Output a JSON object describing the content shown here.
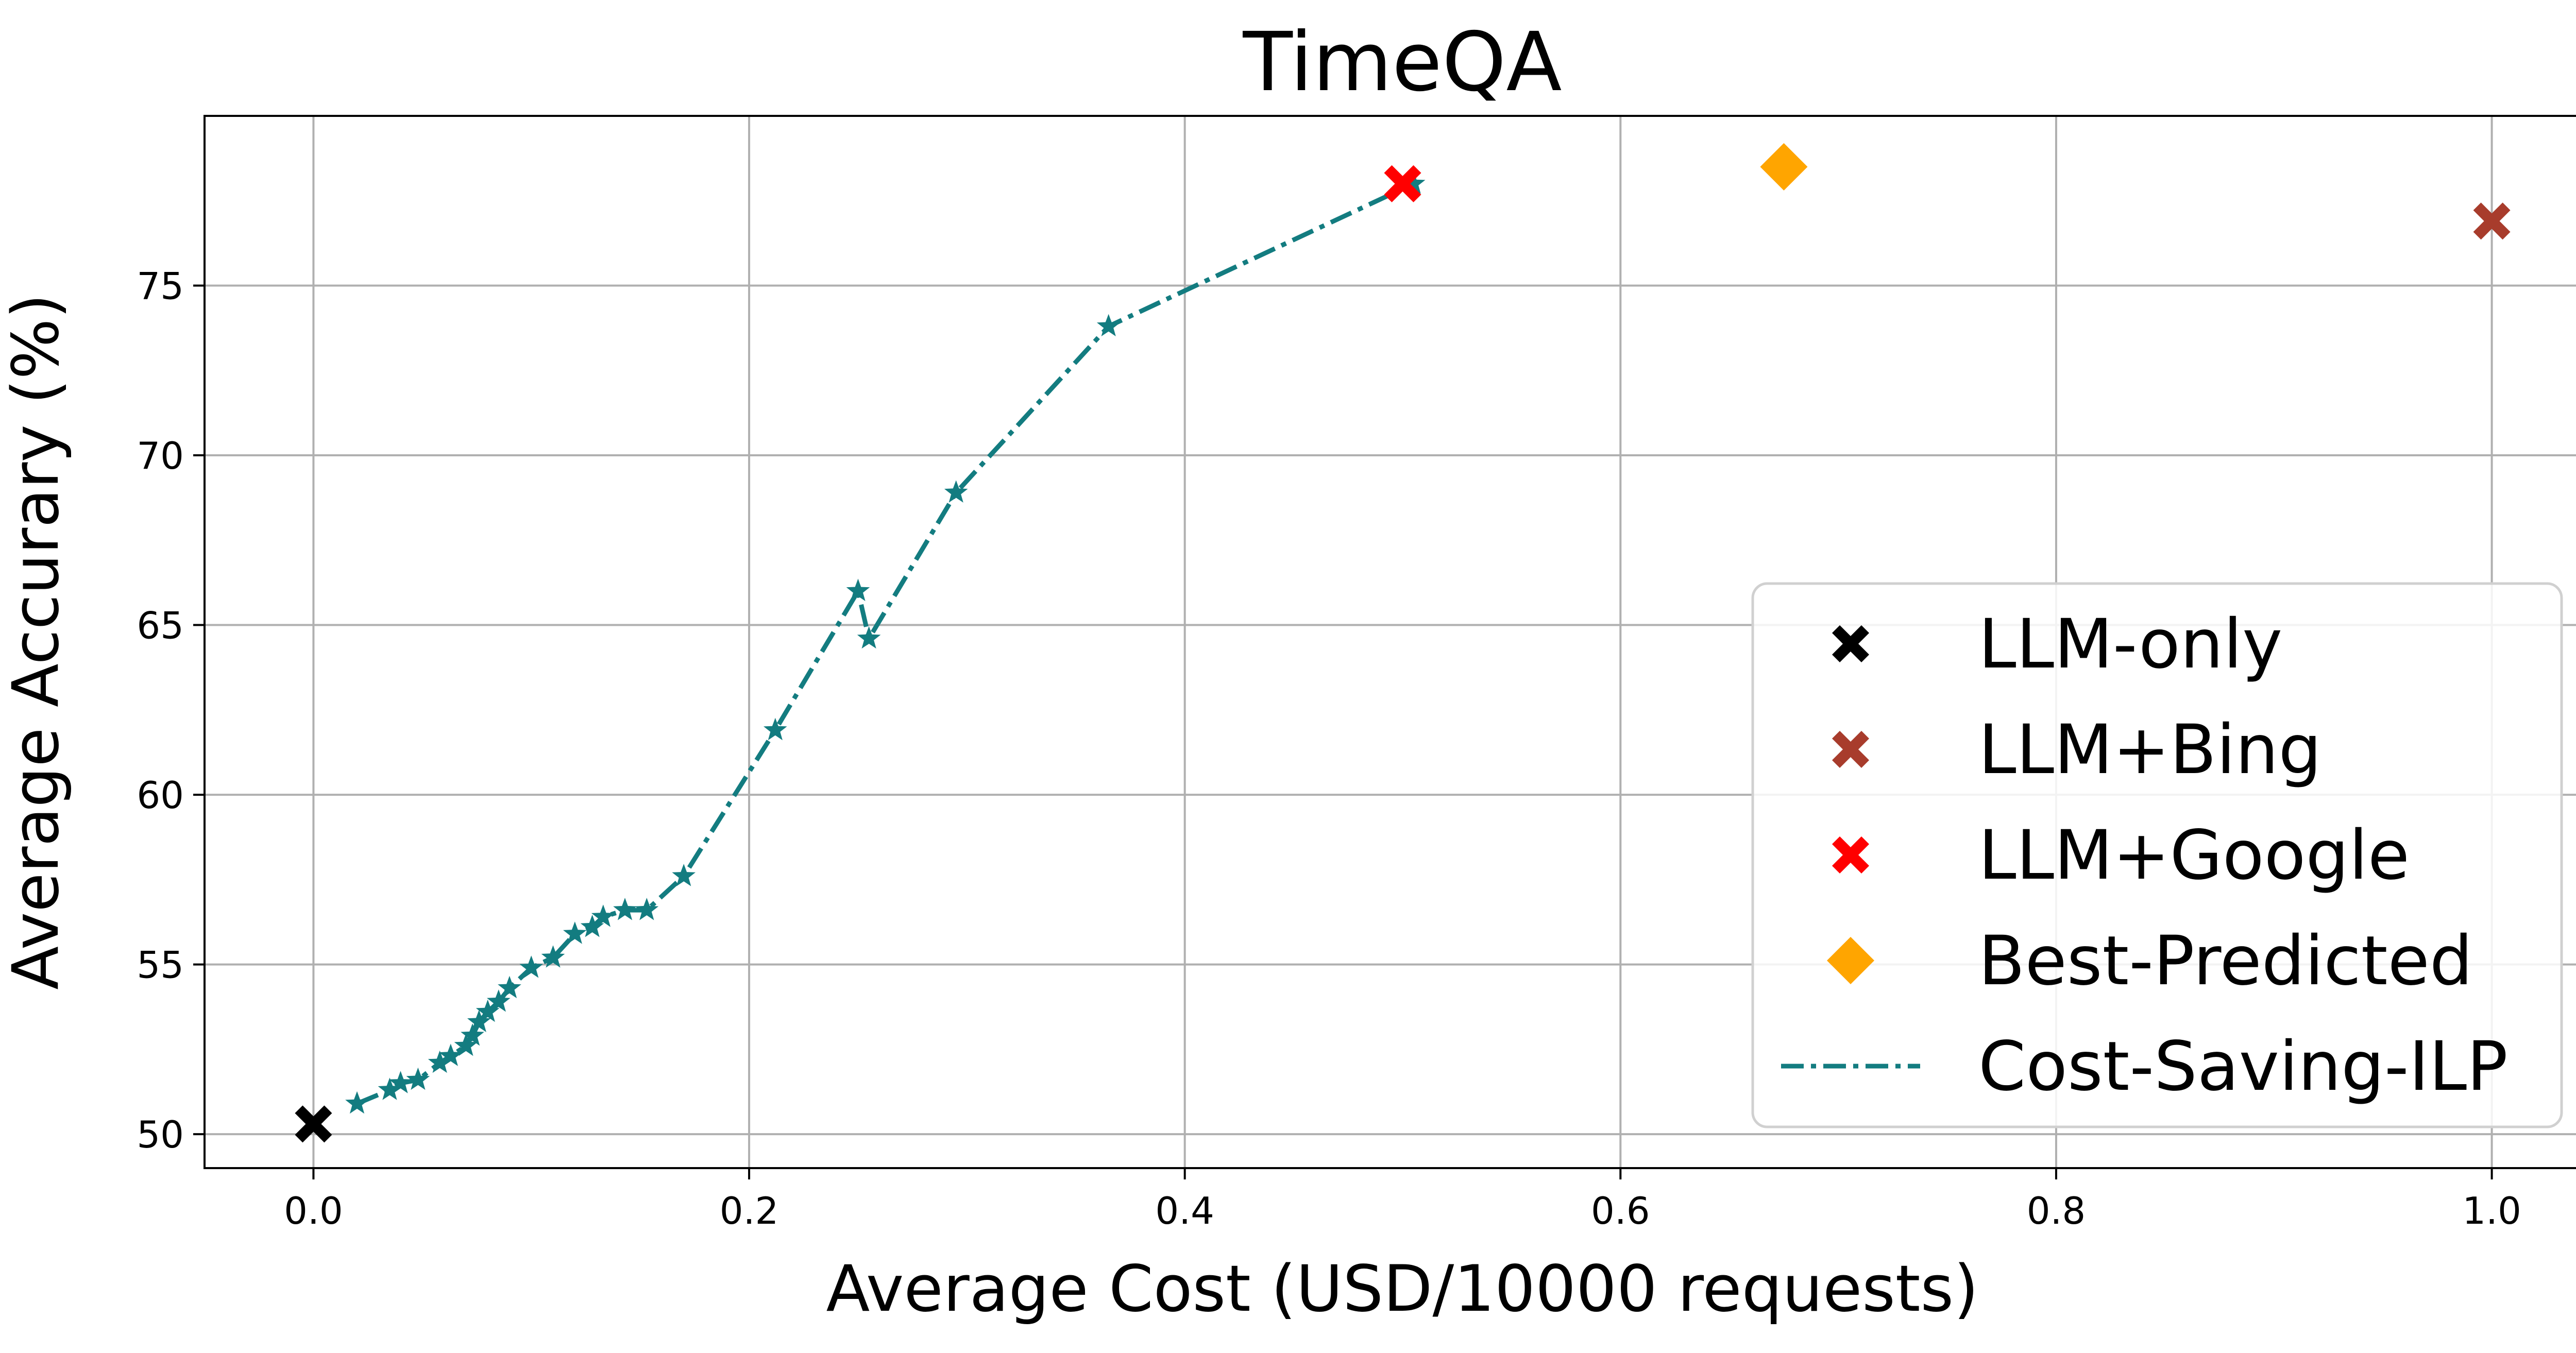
{
  "chart_data": {
    "type": "scatter",
    "title": "TimeQA",
    "xlabel": "Average Cost (USD/10000 requests)",
    "ylabel": "Average Accurary (%)",
    "xlim": [
      -0.05,
      1.05
    ],
    "ylim": [
      49.0,
      80.0
    ],
    "xticks": [
      0.0,
      0.2,
      0.4,
      0.6,
      0.8,
      1.0
    ],
    "xtick_labels": [
      "0.0",
      "0.2",
      "0.4",
      "0.6",
      "0.8",
      "1.0"
    ],
    "yticks": [
      50,
      55,
      60,
      65,
      70,
      75
    ],
    "ytick_labels": [
      "50",
      "55",
      "60",
      "65",
      "70",
      "75"
    ],
    "grid": true,
    "legend_position": "lower-right",
    "series": [
      {
        "name": "LLM-only",
        "kind": "marker",
        "marker": "X",
        "color": "#000000",
        "points": [
          [
            0.0,
            50.3
          ]
        ]
      },
      {
        "name": "LLM+Bing",
        "kind": "marker",
        "marker": "X",
        "color": "#a83c2c",
        "points": [
          [
            1.0,
            76.9
          ]
        ]
      },
      {
        "name": "LLM+Google",
        "kind": "marker",
        "marker": "X",
        "color": "#ff0000",
        "points": [
          [
            0.5,
            78.0
          ]
        ]
      },
      {
        "name": "Best-Predicted",
        "kind": "marker",
        "marker": "diamond",
        "color": "#ffa500",
        "points": [
          [
            0.675,
            78.5
          ]
        ]
      },
      {
        "name": "Cost-Saving-ILP",
        "kind": "line",
        "linestyle": "dashdot",
        "marker": "star",
        "color": "#137c80",
        "points": [
          [
            0.02,
            50.9
          ],
          [
            0.035,
            51.3
          ],
          [
            0.04,
            51.5
          ],
          [
            0.048,
            51.6
          ],
          [
            0.058,
            52.1
          ],
          [
            0.063,
            52.3
          ],
          [
            0.07,
            52.6
          ],
          [
            0.073,
            52.9
          ],
          [
            0.076,
            53.3
          ],
          [
            0.08,
            53.6
          ],
          [
            0.085,
            53.9
          ],
          [
            0.09,
            54.3
          ],
          [
            0.1,
            54.9
          ],
          [
            0.11,
            55.2
          ],
          [
            0.12,
            55.9
          ],
          [
            0.128,
            56.1
          ],
          [
            0.133,
            56.4
          ],
          [
            0.143,
            56.6
          ],
          [
            0.153,
            56.6
          ],
          [
            0.17,
            57.6
          ],
          [
            0.212,
            61.9
          ],
          [
            0.25,
            66.0
          ],
          [
            0.255,
            64.6
          ],
          [
            0.295,
            68.9
          ],
          [
            0.365,
            73.8
          ],
          [
            0.505,
            78.0
          ]
        ]
      }
    ]
  }
}
